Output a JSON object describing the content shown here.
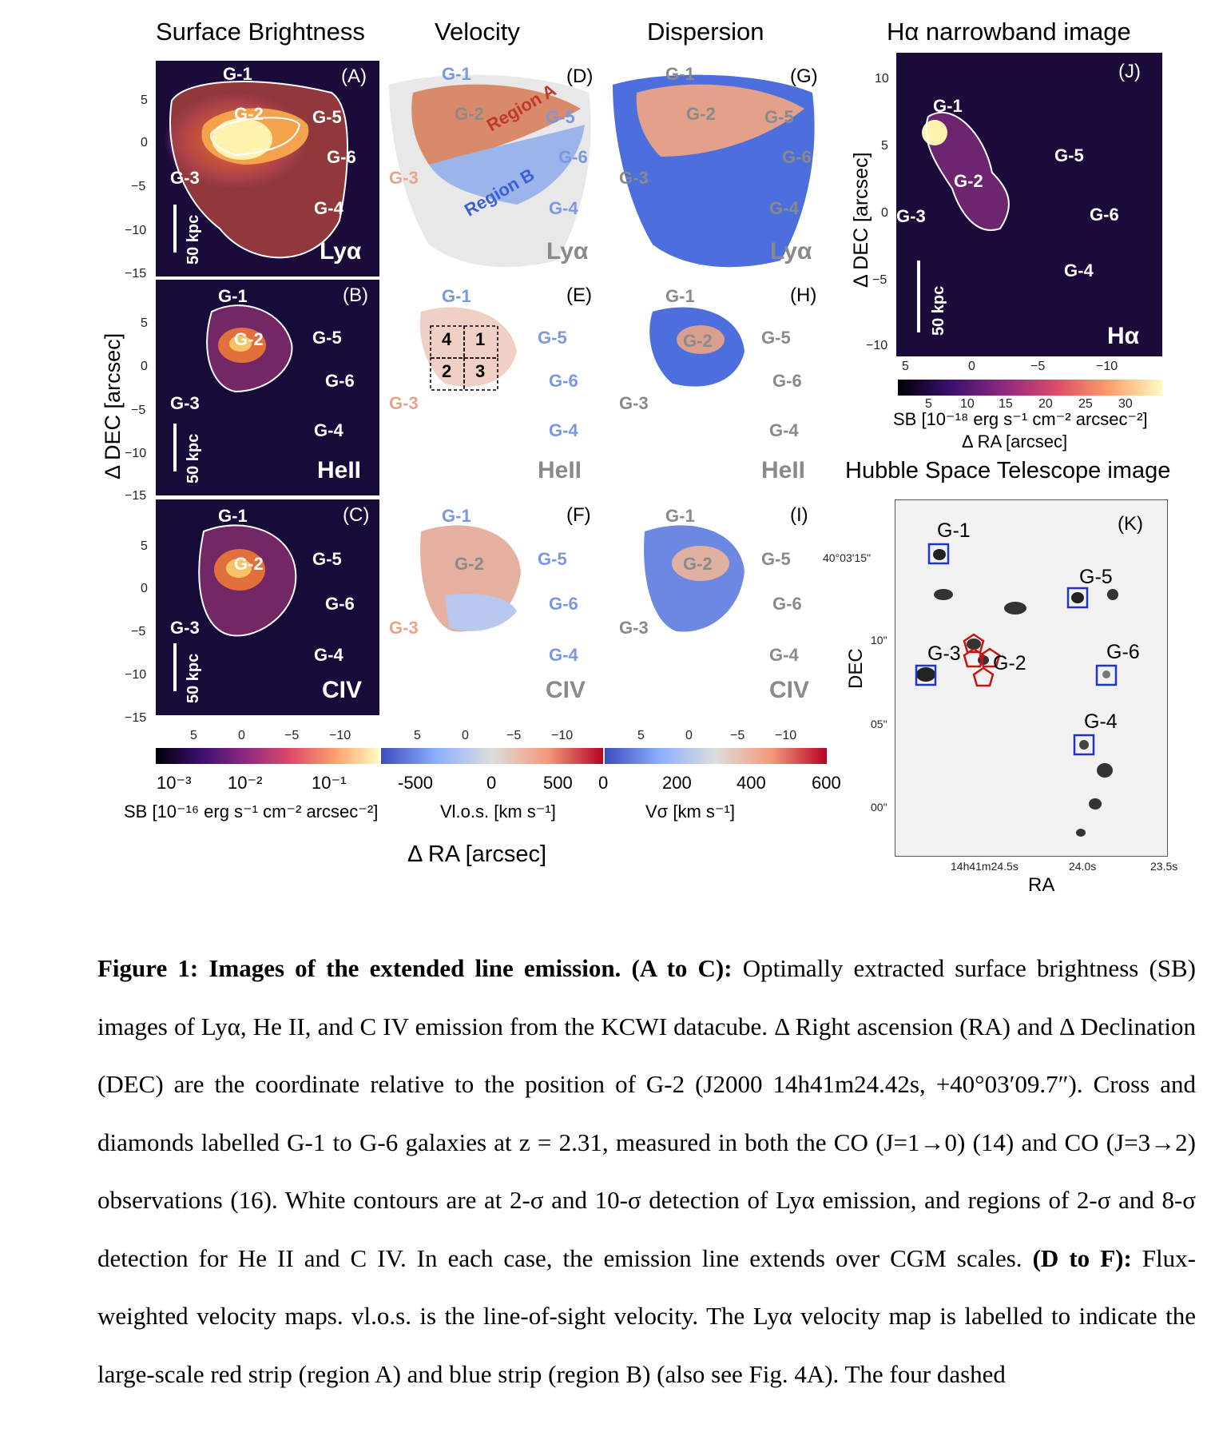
{
  "column_titles": {
    "sb": "Surface Brightness",
    "vel": "Velocity",
    "disp": "Dispersion",
    "ha": "Hα narrowband image",
    "hst": "Hubble Space Telescope image"
  },
  "panel_letters": [
    "(A)",
    "(B)",
    "(C)",
    "(D)",
    "(E)",
    "(F)",
    "(G)",
    "(H)",
    "(I)",
    "(J)",
    "(K)"
  ],
  "line_tags": {
    "lya": "Lyα",
    "heii": "HeII",
    "civ": "CIV",
    "ha": "Hα"
  },
  "galaxies": [
    "G-1",
    "G-2",
    "G-3",
    "G-4",
    "G-5",
    "G-6"
  ],
  "region_labels": {
    "a": "Region A",
    "b": "Region B"
  },
  "box_labels": [
    "4",
    "1",
    "2",
    "3"
  ],
  "scale_bar": "50 kpc",
  "axes": {
    "grid_y_ticks": [
      "5",
      "0",
      "−5",
      "−10",
      "−15"
    ],
    "grid_x_ticks": [
      "5",
      "0",
      "−5",
      "−10"
    ],
    "ylabel": "Δ DEC [arcsec]",
    "xlabel": "Δ RA [arcsec]",
    "ha_y_ticks": [
      "10",
      "5",
      "0",
      "−5",
      "−10"
    ],
    "ha_x_ticks": [
      "5",
      "0",
      "−5",
      "−10"
    ],
    "ha_ylabel": "Δ DEC [arcsec]",
    "hst_y_ticks": [
      "40°03'15\"",
      "10\"",
      "05\"",
      "00\""
    ],
    "hst_x_ticks": [
      "14h41m24.5s",
      "24.0s",
      "23.5s"
    ],
    "hst_xlabel": "RA",
    "hst_ylabel": "DEC"
  },
  "colorbars": {
    "sb": {
      "ticks": [
        "10⁻³",
        "10⁻²",
        "10⁻¹"
      ],
      "label": "SB [10⁻¹⁶ erg s⁻¹ cm⁻² arcsec⁻²]"
    },
    "vel": {
      "ticks": [
        "-500",
        "0",
        "500"
      ],
      "label": "Vl.o.s. [km s⁻¹]"
    },
    "disp": {
      "ticks": [
        "0",
        "200",
        "400",
        "600"
      ],
      "label": "Vσ [km s⁻¹]"
    },
    "ha": {
      "ticks": [
        "5",
        "10",
        "15",
        "20",
        "25",
        "30"
      ],
      "label": "SB [10⁻¹⁸ erg s⁻¹ cm⁻² arcsec⁻²]",
      "xlabel": "Δ RA [arcsec]"
    }
  },
  "caption": {
    "title": "Figure 1: Images of the extended line emission.",
    "p1_head": "(A to C):",
    "p1": " Optimally extracted surface brightness (SB) images of Lyα, He II, and C IV emission from the KCWI datacube. Δ Right ascension (RA) and Δ Declination (DEC) are the coordinate relative to the position of G-2 (J2000 14h41m24.42s, +40°03′09.7″). Cross and diamonds labelled G-1 to G-6 galaxies at z = 2.31, measured in both the CO (J=1→0) (14) and CO (J=3→2) observations (16). White contours are at 2-σ and 10-σ detection of Lyα emission, and regions of 2-σ and 8-σ detection for He II and C IV. In each case, the emission line extends over CGM scales.",
    "p2_head": "(D to F):",
    "p2": " Flux-weighted velocity maps. vl.o.s. is the line-of-sight velocity. The Lyα velocity map is labelled to indicate the large-scale red strip (region A) and blue strip (region B) (also see Fig. 4A). The four dashed"
  },
  "colors": {
    "inferno_dark": "#160b39",
    "vel_red": "#c0392b",
    "vel_blue": "#3b5fd9",
    "hst_box_blue": "#2233cc",
    "hst_box_red": "#cc1111"
  }
}
